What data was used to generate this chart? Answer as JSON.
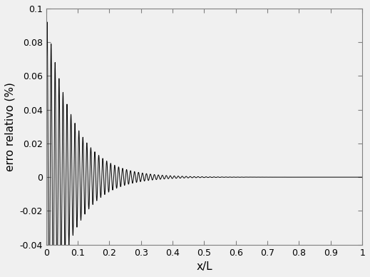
{
  "title": "",
  "xlabel": "x/L",
  "ylabel": "erro relativo (%)",
  "xlim": [
    0,
    1
  ],
  "ylim": [
    -0.04,
    0.1
  ],
  "xticks": [
    0,
    0.1,
    0.2,
    0.3,
    0.4,
    0.5,
    0.6,
    0.7,
    0.8,
    0.9,
    1.0
  ],
  "yticks": [
    -0.04,
    -0.02,
    0,
    0.02,
    0.04,
    0.06,
    0.08,
    0.1
  ],
  "line_color": "#000000",
  "line_width": 0.7,
  "background_color": "#f0f0f0",
  "figsize": [
    5.19,
    3.88
  ],
  "dpi": 100,
  "n_points": 10000,
  "amp": 0.153,
  "decay_val": 18.0,
  "freq_val": 500.0
}
